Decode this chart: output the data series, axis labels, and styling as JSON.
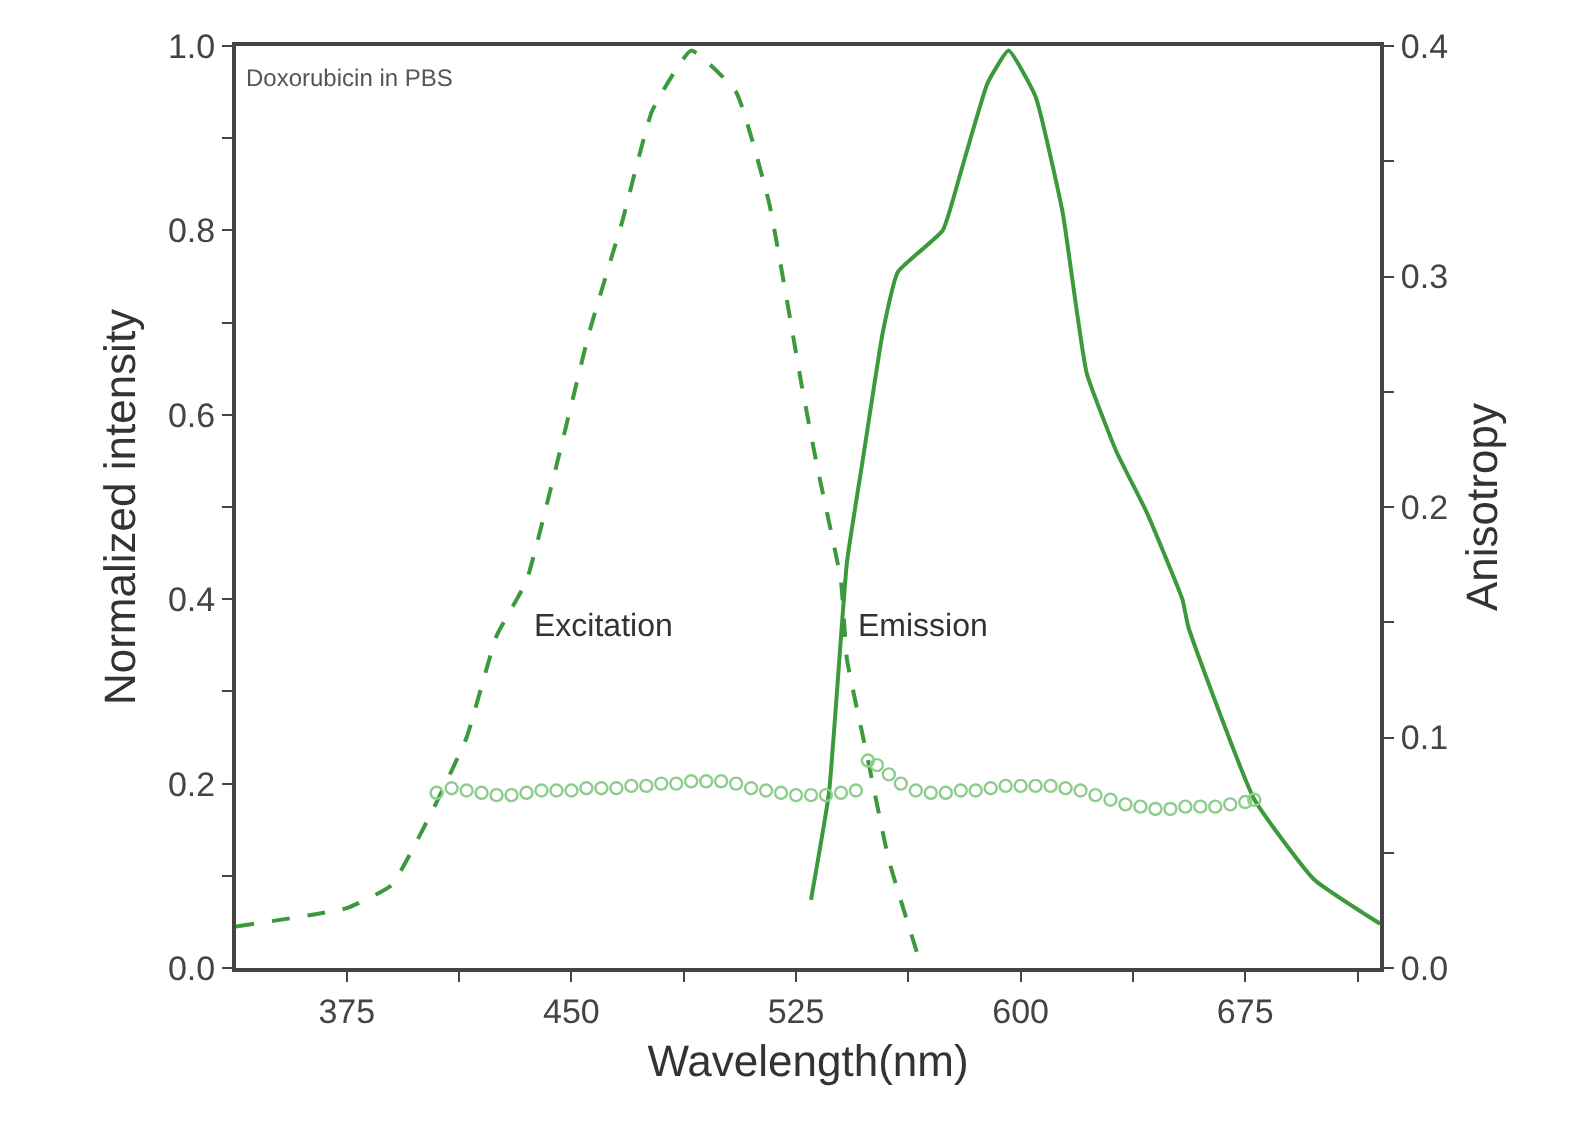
{
  "chart_data": {
    "type": "line",
    "xlabel": "Wavelength(nm)",
    "ylabel": "Normalized intensity",
    "y2label": "Anisotropy",
    "xlim": [
      338,
      720
    ],
    "ylim": [
      0,
      1.0
    ],
    "y2lim": [
      0,
      0.4
    ],
    "xticks": [
      375,
      {
        "value": 412.5,
        "label": null
      },
      450,
      {
        "value": 487.5,
        "label": null
      },
      525,
      {
        "value": 562.5,
        "label": null
      },
      600,
      {
        "value": 637.5,
        "label": null
      },
      675,
      {
        "value": 712.5,
        "label": null
      }
    ],
    "yticks": [
      {
        "value": 0,
        "label": "0.0"
      },
      {
        "value": 0.1,
        "label": null
      },
      0.2,
      {
        "value": 0.3,
        "label": null
      },
      0.4,
      {
        "value": 0.5,
        "label": null
      },
      0.6,
      {
        "value": 0.7,
        "label": null
      },
      0.8,
      {
        "value": 0.9,
        "label": null
      },
      {
        "value": 1.0,
        "label": "1.0"
      }
    ],
    "y2ticks": [
      {
        "value": 0,
        "label": "0.0"
      },
      {
        "value": 0.05,
        "label": null
      },
      0.1,
      {
        "value": 0.15,
        "label": null
      },
      0.2,
      {
        "value": 0.25,
        "label": null
      },
      0.3,
      {
        "value": 0.35,
        "label": null
      },
      0.4
    ],
    "legend": false,
    "series": [
      {
        "name": "Excitation",
        "line_style": "dashed",
        "marker": "none",
        "color": "#3c9a3c",
        "x": [
          338,
          375,
          390,
          405,
          415,
          425,
          435,
          445,
          456,
          467,
          477,
          490,
          505,
          516,
          527,
          532,
          540,
          542,
          549,
          556,
          567
        ],
        "values": [
          0.045,
          0.065,
          0.09,
          0.18,
          0.25,
          0.36,
          0.42,
          0.545,
          0.69,
          0.81,
          0.93,
          0.995,
          0.95,
          0.83,
          0.63,
          0.545,
          0.42,
          0.335,
          0.226,
          0.117,
          0.0
        ]
      },
      {
        "name": "Emission",
        "line_style": "solid",
        "marker": "none",
        "color": "#3c9a3c",
        "x": [
          530,
          536,
          542,
          547,
          554,
          559,
          574,
          580,
          589,
          596,
          605,
          614,
          622,
          632,
          642,
          654,
          656,
          678,
          698,
          720
        ],
        "values": [
          0.074,
          0.19,
          0.44,
          0.545,
          0.69,
          0.755,
          0.8,
          0.863,
          0.96,
          0.995,
          0.945,
          0.82,
          0.646,
          0.56,
          0.495,
          0.4,
          0.37,
          0.183,
          0.096,
          0.048
        ]
      },
      {
        "type": "scatter",
        "axis": "y2",
        "marker": "circle",
        "color": "#8ccc8c",
        "x": [
          405,
          410,
          415,
          420,
          425,
          430,
          435,
          440,
          445,
          450,
          455,
          460,
          465,
          470,
          475,
          480,
          485,
          490,
          495,
          500,
          505,
          510,
          515,
          520,
          525,
          530,
          535,
          540,
          545,
          549,
          552,
          556,
          560,
          565,
          570,
          575,
          580,
          585,
          590,
          595,
          600,
          605,
          610,
          615,
          620,
          625,
          630,
          635,
          640,
          645,
          650,
          655,
          660,
          665,
          670,
          675,
          678
        ],
        "values": [
          0.076,
          0.078,
          0.077,
          0.076,
          0.075,
          0.075,
          0.076,
          0.077,
          0.077,
          0.077,
          0.078,
          0.078,
          0.078,
          0.079,
          0.079,
          0.08,
          0.08,
          0.081,
          0.081,
          0.081,
          0.08,
          0.078,
          0.077,
          0.076,
          0.075,
          0.075,
          0.075,
          0.076,
          0.077,
          0.09,
          0.088,
          0.084,
          0.08,
          0.077,
          0.076,
          0.076,
          0.077,
          0.077,
          0.078,
          0.079,
          0.079,
          0.079,
          0.079,
          0.078,
          0.077,
          0.075,
          0.073,
          0.071,
          0.07,
          0.069,
          0.069,
          0.07,
          0.07,
          0.07,
          0.071,
          0.072,
          0.073
        ]
      }
    ],
    "annotations": [
      "Doxorubicin in PBS"
    ]
  }
}
